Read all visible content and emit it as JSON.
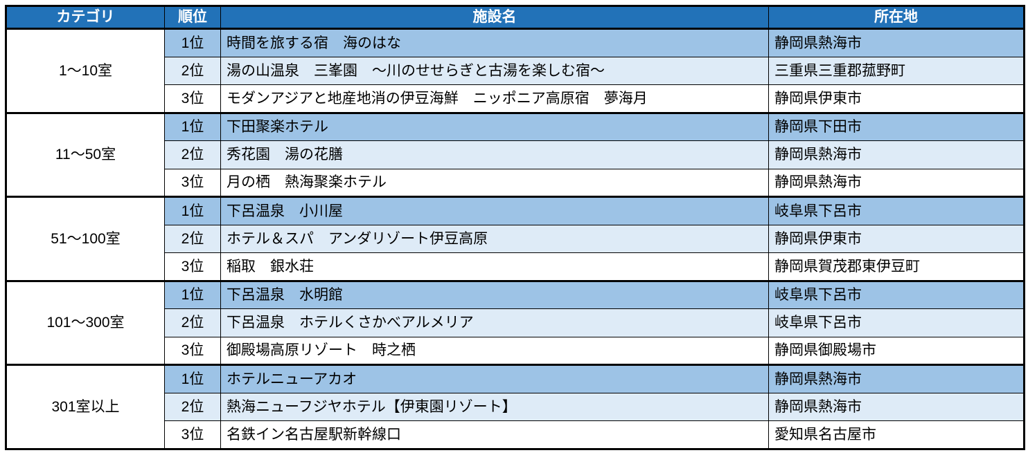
{
  "colors": {
    "header_bg": "#2272B8",
    "header_text": "#FFFFFF",
    "rank1_bg": "#9DC3E6",
    "rank2_bg": "#DEEBF7",
    "rank3_bg": "#FFFFFF",
    "border": "#000000",
    "text": "#000000"
  },
  "chart_data": {
    "type": "table",
    "columns": [
      "カテゴリ",
      "順位",
      "施設名",
      "所在地"
    ],
    "groups": [
      {
        "category": "1〜10室",
        "rows": [
          {
            "rank": "1位",
            "facility": "時間を旅する宿　海のはな",
            "location": "静岡県熱海市"
          },
          {
            "rank": "2位",
            "facility": "湯の山温泉　三峯園　〜川のせせらぎと古湯を楽しむ宿〜",
            "location": "三重県三重郡菰野町"
          },
          {
            "rank": "3位",
            "facility": "モダンアジアと地産地消の伊豆海鮮　ニッポニア高原宿　夢海月",
            "location": "静岡県伊東市"
          }
        ]
      },
      {
        "category": "11〜50室",
        "rows": [
          {
            "rank": "1位",
            "facility": "下田聚楽ホテル",
            "location": "静岡県下田市"
          },
          {
            "rank": "2位",
            "facility": "秀花園　湯の花膳",
            "location": "静岡県熱海市"
          },
          {
            "rank": "3位",
            "facility": "月の栖　熱海聚楽ホテル",
            "location": "静岡県熱海市"
          }
        ]
      },
      {
        "category": "51〜100室",
        "rows": [
          {
            "rank": "1位",
            "facility": "下呂温泉　小川屋",
            "location": "岐阜県下呂市"
          },
          {
            "rank": "2位",
            "facility": "ホテル＆スパ　アンダリゾート伊豆高原",
            "location": "静岡県伊東市"
          },
          {
            "rank": "3位",
            "facility": "稲取　銀水荘",
            "location": "静岡県賀茂郡東伊豆町"
          }
        ]
      },
      {
        "category": "101〜300室",
        "rows": [
          {
            "rank": "1位",
            "facility": "下呂温泉　水明館",
            "location": "岐阜県下呂市"
          },
          {
            "rank": "2位",
            "facility": "下呂温泉　ホテルくさかべアルメリア",
            "location": "岐阜県下呂市"
          },
          {
            "rank": "3位",
            "facility": "御殿場高原リゾート　時之栖",
            "location": "静岡県御殿場市"
          }
        ]
      },
      {
        "category": "301室以上",
        "rows": [
          {
            "rank": "1位",
            "facility": "ホテルニューアカオ",
            "location": "静岡県熱海市"
          },
          {
            "rank": "2位",
            "facility": "熱海ニューフジヤホテル【伊東園リゾート】",
            "location": "静岡県熱海市"
          },
          {
            "rank": "3位",
            "facility": "名鉄イン名古屋駅新幹線口",
            "location": "愛知県名古屋市"
          }
        ]
      }
    ]
  }
}
